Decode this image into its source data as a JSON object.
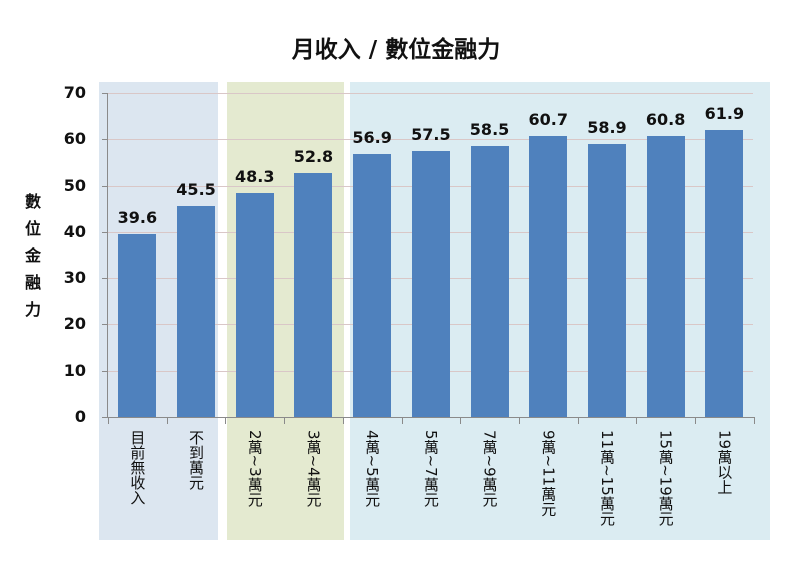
{
  "chart_data": {
    "type": "bar",
    "title": "月收入 / 數位金融力",
    "xlabel": "",
    "ylabel": "數位金融力",
    "ylim": [
      0,
      70
    ],
    "yticks": [
      0,
      10,
      20,
      30,
      40,
      50,
      60,
      70
    ],
    "grid": true,
    "legend": null,
    "categories": [
      "目前無收入",
      "不到1萬元",
      "2萬~3萬元",
      "3萬~4萬元",
      "4萬~5萬元",
      "5萬~7萬元",
      "7萬~9萬元",
      "9萬~11萬元",
      "11萬~15萬元",
      "15萬~19萬元",
      "19萬以上"
    ],
    "category_display": [
      "目前無收入",
      "不到萬元",
      "2萬~3萬元",
      "3萬~4萬元",
      "4萬~5萬元",
      "5萬~7萬元",
      "7萬~9萬元",
      "9萬~11萬元",
      "11萬~15萬元",
      "15萬~19萬元",
      "19萬以上"
    ],
    "values": [
      39.6,
      45.5,
      48.3,
      52.8,
      56.9,
      57.5,
      58.5,
      60.7,
      58.9,
      60.8,
      61.9
    ],
    "value_labels": [
      "39.6",
      "45.5",
      "48.3",
      "52.8",
      "56.9",
      "57.5",
      "58.5",
      "60.7",
      "58.9",
      "60.8",
      "61.9"
    ],
    "bar_color": "#4f81bd",
    "group_panels": [
      {
        "categories": [
          0,
          1
        ],
        "color": "#dce6f0"
      },
      {
        "categories": [
          2,
          3
        ],
        "color": "#e4ead0"
      },
      {
        "categories": [
          4,
          5,
          6,
          7,
          8,
          9,
          10
        ],
        "color": "#dbecf2"
      }
    ]
  },
  "title": "月收入 / 數位金融力",
  "ylabel_chars": [
    "數",
    "位",
    "金",
    "融",
    "力"
  ],
  "yticks": [
    "0",
    "10",
    "20",
    "30",
    "40",
    "50",
    "60",
    "70"
  ]
}
